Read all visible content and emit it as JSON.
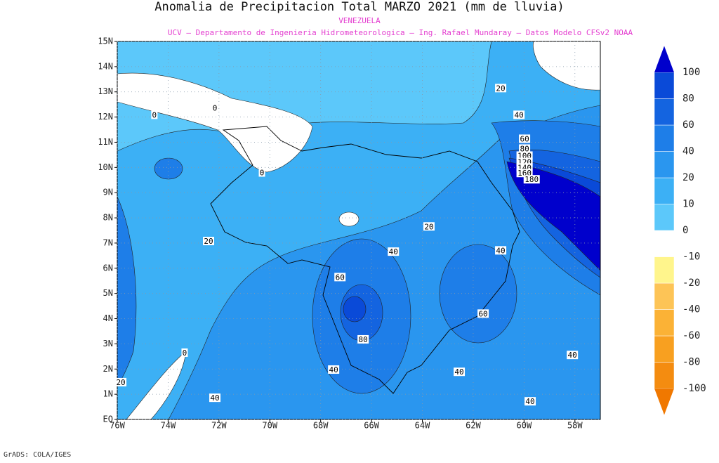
{
  "title": "Anomalia de Precipitacion Total MARZO 2021 (mm de lluvia)",
  "subtitle": "VENEZUELA",
  "credits": "UCV – Departamento de Ingenieria Hidrometeorologica – Ing. Rafael Mundaray – Datos Modelo CFSv2 NOAA",
  "footer": "GrADS: COLA/IGES",
  "map": {
    "lonlim": [
      -76,
      -57
    ],
    "latlim": [
      0,
      15
    ],
    "grid": true,
    "lonticks": [
      {
        "value": -76,
        "label": "76W"
      },
      {
        "value": -74,
        "label": "74W"
      },
      {
        "value": -72,
        "label": "72W"
      },
      {
        "value": -70,
        "label": "70W"
      },
      {
        "value": -68,
        "label": "68W"
      },
      {
        "value": -66,
        "label": "66W"
      },
      {
        "value": -64,
        "label": "64W"
      },
      {
        "value": -62,
        "label": "62W"
      },
      {
        "value": -60,
        "label": "60W"
      },
      {
        "value": -58,
        "label": "58W"
      }
    ],
    "latticks": [
      {
        "value": 0,
        "label": "EQ"
      },
      {
        "value": 1,
        "label": "1N"
      },
      {
        "value": 2,
        "label": "2N"
      },
      {
        "value": 3,
        "label": "3N"
      },
      {
        "value": 4,
        "label": "4N"
      },
      {
        "value": 5,
        "label": "5N"
      },
      {
        "value": 6,
        "label": "6N"
      },
      {
        "value": 7,
        "label": "7N"
      },
      {
        "value": 8,
        "label": "8N"
      },
      {
        "value": 9,
        "label": "9N"
      },
      {
        "value": 10,
        "label": "10N"
      },
      {
        "value": 11,
        "label": "11N"
      },
      {
        "value": 12,
        "label": "12N"
      },
      {
        "value": 13,
        "label": "13N"
      },
      {
        "value": 14,
        "label": "14N"
      },
      {
        "value": 15,
        "label": "15N"
      }
    ],
    "contour_labels": [
      {
        "value": 0,
        "lon": -74.54,
        "lat": 12.09
      },
      {
        "value": 0,
        "lon": -72.16,
        "lat": 12.37
      },
      {
        "value": 0,
        "lon": -70.31,
        "lat": 9.8
      },
      {
        "value": 20,
        "lon": -60.92,
        "lat": 13.15
      },
      {
        "value": 40,
        "lon": -60.2,
        "lat": 12.09
      },
      {
        "value": 60,
        "lon": -59.98,
        "lat": 11.14
      },
      {
        "value": 80,
        "lon": -59.98,
        "lat": 10.75
      },
      {
        "value": 100,
        "lon": -59.98,
        "lat": 10.47
      },
      {
        "value": 120,
        "lon": -59.98,
        "lat": 10.22
      },
      {
        "value": 140,
        "lon": -59.98,
        "lat": 10.0
      },
      {
        "value": 160,
        "lon": -59.98,
        "lat": 9.78
      },
      {
        "value": 180,
        "lon": -59.7,
        "lat": 9.53
      },
      {
        "value": 20,
        "lon": -63.74,
        "lat": 7.66
      },
      {
        "value": 20,
        "lon": -72.41,
        "lat": 7.08
      },
      {
        "value": 40,
        "lon": -65.14,
        "lat": 6.66
      },
      {
        "value": 40,
        "lon": -60.92,
        "lat": 6.71
      },
      {
        "value": 60,
        "lon": -67.24,
        "lat": 5.65
      },
      {
        "value": 80,
        "lon": -66.33,
        "lat": 3.18
      },
      {
        "value": 60,
        "lon": -61.61,
        "lat": 4.2
      },
      {
        "value": 40,
        "lon": -58.1,
        "lat": 2.56
      },
      {
        "value": 0,
        "lon": -73.35,
        "lat": 2.65
      },
      {
        "value": 40,
        "lon": -67.49,
        "lat": 1.98
      },
      {
        "value": 40,
        "lon": -62.55,
        "lat": 1.89
      },
      {
        "value": 40,
        "lon": -72.16,
        "lat": 0.86
      },
      {
        "value": 40,
        "lon": -59.76,
        "lat": 0.72
      },
      {
        "value": 20,
        "lon": -75.86,
        "lat": 1.48
      }
    ]
  },
  "colorbar": {
    "levels": [
      -100,
      -80,
      -60,
      -40,
      -20,
      -10,
      0,
      10,
      20,
      40,
      60,
      80,
      100
    ],
    "colors": [
      "#f07800",
      "#f48c10",
      "#f8a020",
      "#fbb236",
      "#fdc456",
      "#fff58c",
      "#ffffff",
      "#5cc8fa",
      "#3cb0f5",
      "#2a96ef",
      "#1e7ee8",
      "#1464e0",
      "#0a4ad8",
      "#0000cc"
    ]
  }
}
